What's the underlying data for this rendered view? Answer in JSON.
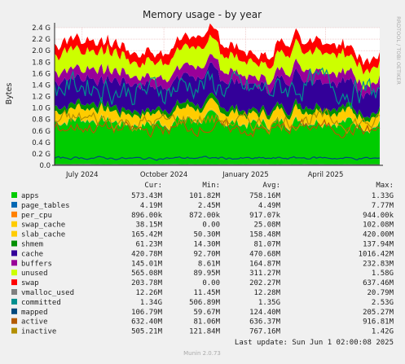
{
  "chart_data": {
    "type": "area",
    "title": "Memory usage - by year",
    "ylabel": "Bytes",
    "side_label": "RRDTOOL / TOBI OETIKER",
    "footer": "Munin 2.0.73",
    "last_update": "Last update:  Sun Jun  1 02:00:08 2025",
    "ylim": [
      0,
      2.4
    ],
    "y_unit": "G",
    "y_ticks": [
      0,
      0.2,
      0.4,
      0.6,
      0.8,
      1.0,
      1.2,
      1.4,
      1.6,
      1.8,
      2.0,
      2.2,
      2.4
    ],
    "y_tick_labels": [
      "0.0",
      "0.2 G",
      "0.4 G",
      "0.6 G",
      "0.8 G",
      "1.0 G",
      "1.2 G",
      "1.4 G",
      "1.6 G",
      "1.8 G",
      "2.0 G",
      "2.2 G",
      "2.4 G"
    ],
    "x_range": [
      "2024-05-31",
      "2025-06-01"
    ],
    "x_ticks": [
      {
        "label": "July 2024",
        "date": "2024-07-01"
      },
      {
        "label": "October 2024",
        "date": "2024-10-01"
      },
      {
        "label": "January 2025",
        "date": "2025-01-01"
      },
      {
        "label": "April 2025",
        "date": "2025-04-01"
      }
    ],
    "grid": true,
    "legend_headers": [
      "Cur:",
      "Min:",
      "Avg:",
      "Max:"
    ],
    "series": [
      {
        "name": "apps",
        "color": "#00cc00",
        "cur": "573.43M",
        "min": "101.82M",
        "avg": "758.16M",
        "max": "1.33G",
        "stack": 0.76
      },
      {
        "name": "page_tables",
        "color": "#0066b3",
        "cur": "4.19M",
        "min": "2.45M",
        "avg": "4.49M",
        "max": "7.77M",
        "stack": 0.005
      },
      {
        "name": "per_cpu",
        "color": "#ff8000",
        "cur": "896.00k",
        "min": "872.00k",
        "avg": "917.07k",
        "max": "944.00k",
        "stack": 0.001
      },
      {
        "name": "swap_cache",
        "color": "#ffcc00",
        "cur": "38.15M",
        "min": "0.00",
        "avg": "25.08M",
        "max": "102.08M",
        "stack": 0.025
      },
      {
        "name": "slab_cache",
        "color": "#ffcc00",
        "cur": "165.42M",
        "min": "50.30M",
        "avg": "158.48M",
        "max": "420.00M",
        "stack": 0.16
      },
      {
        "name": "shmem",
        "color": "#008f00",
        "cur": "61.23M",
        "min": "14.30M",
        "avg": "81.07M",
        "max": "137.94M",
        "stack": 0.08
      },
      {
        "name": "cache",
        "color": "#330099",
        "cur": "420.78M",
        "min": "92.70M",
        "avg": "470.68M",
        "max": "1016.42M",
        "stack": 0.45
      },
      {
        "name": "buffers",
        "color": "#990099",
        "cur": "145.01M",
        "min": "8.61M",
        "avg": "164.87M",
        "max": "232.83M",
        "stack": 0.17
      },
      {
        "name": "unused",
        "color": "#ccff00",
        "cur": "565.08M",
        "min": "89.95M",
        "avg": "311.27M",
        "max": "1.58G",
        "stack": 0.3
      },
      {
        "name": "swap",
        "color": "#ff0000",
        "cur": "203.78M",
        "min": "0.00",
        "avg": "202.27M",
        "max": "637.46M",
        "stack": 0.17
      },
      {
        "name": "vmalloc_used",
        "color": "#808080",
        "cur": "12.26M",
        "min": "11.45M",
        "avg": "12.28M",
        "max": "20.79M",
        "line": 0.012
      },
      {
        "name": "committed",
        "color": "#008f8f",
        "cur": "1.34G",
        "min": "506.89M",
        "avg": "1.35G",
        "max": "2.53G",
        "line": 1.35
      },
      {
        "name": "mapped",
        "color": "#00487d",
        "cur": "106.79M",
        "min": "59.67M",
        "avg": "124.40M",
        "max": "205.27M",
        "line": 0.124
      },
      {
        "name": "active",
        "color": "#b35a00",
        "cur": "632.40M",
        "min": "81.06M",
        "avg": "636.37M",
        "max": "916.81M",
        "line": 0.64
      },
      {
        "name": "inactive",
        "color": "#b38f00",
        "cur": "505.21M",
        "min": "121.84M",
        "avg": "767.16M",
        "max": "1.42G",
        "line": 0.77
      }
    ]
  }
}
